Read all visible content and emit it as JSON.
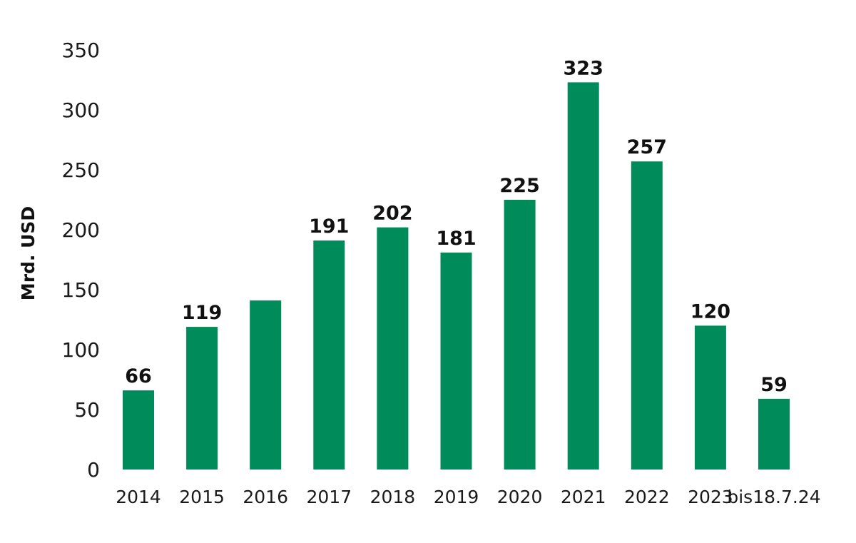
{
  "chart_data": {
    "type": "bar",
    "title": "",
    "xlabel": "",
    "ylabel": "Mrd. USD",
    "categories": [
      "2014",
      "2015",
      "2016",
      "2017",
      "2018",
      "2019",
      "2020",
      "2021",
      "2022",
      "2023",
      "bis18.7.24"
    ],
    "values": [
      66,
      119,
      141,
      191,
      202,
      181,
      225,
      323,
      257,
      120,
      59
    ],
    "data_labels": [
      "66",
      "119",
      "",
      "191",
      "202",
      "181",
      "225",
      "323",
      "257",
      "120",
      "59"
    ],
    "ylim": [
      0,
      350
    ],
    "yticks": [
      0,
      50,
      100,
      150,
      200,
      250,
      300,
      350
    ],
    "grid": false,
    "legend": "none",
    "bar_color": "#008b5b"
  }
}
